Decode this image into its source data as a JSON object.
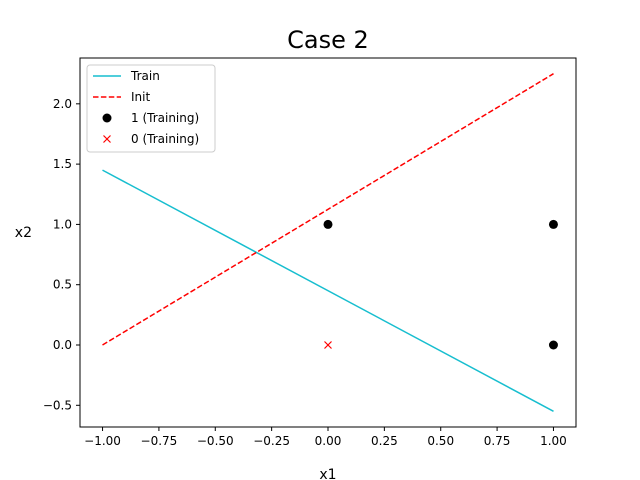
{
  "chart_data": {
    "type": "line",
    "title": "Case 2",
    "xlabel": "x1",
    "ylabel": "x2",
    "xlim": [
      -1.1,
      1.1
    ],
    "ylim": [
      -0.68,
      2.38
    ],
    "xticks": [
      -1.0,
      -0.75,
      -0.5,
      -0.25,
      0.0,
      0.25,
      0.5,
      0.75,
      1.0
    ],
    "xtick_labels": [
      "−1.00",
      "−0.75",
      "−0.50",
      "−0.25",
      "0.00",
      "0.25",
      "0.50",
      "0.75",
      "1.00"
    ],
    "yticks": [
      -0.5,
      0.0,
      0.5,
      1.0,
      1.5,
      2.0
    ],
    "ytick_labels": [
      "−0.5",
      "0.0",
      "0.5",
      "1.0",
      "1.5",
      "2.0"
    ],
    "grid": false,
    "legend_position": "top-left",
    "series": [
      {
        "name": "Train",
        "kind": "line",
        "style": "solid",
        "color": "#17becf",
        "x": [
          -1.0,
          1.0
        ],
        "y": [
          1.45,
          -0.55
        ]
      },
      {
        "name": "Init",
        "kind": "line",
        "style": "dashed",
        "color": "#ff0000",
        "x": [
          -1.0,
          1.0
        ],
        "y": [
          0.0,
          2.25
        ]
      },
      {
        "name": "1 (Training)",
        "kind": "scatter",
        "marker": "circle",
        "color": "#000000",
        "x": [
          0.0,
          1.0,
          1.0
        ],
        "y": [
          1.0,
          1.0,
          0.0
        ]
      },
      {
        "name": "0 (Training)",
        "kind": "scatter",
        "marker": "x",
        "color": "#ff0000",
        "x": [
          0.0
        ],
        "y": [
          0.0
        ]
      }
    ]
  }
}
